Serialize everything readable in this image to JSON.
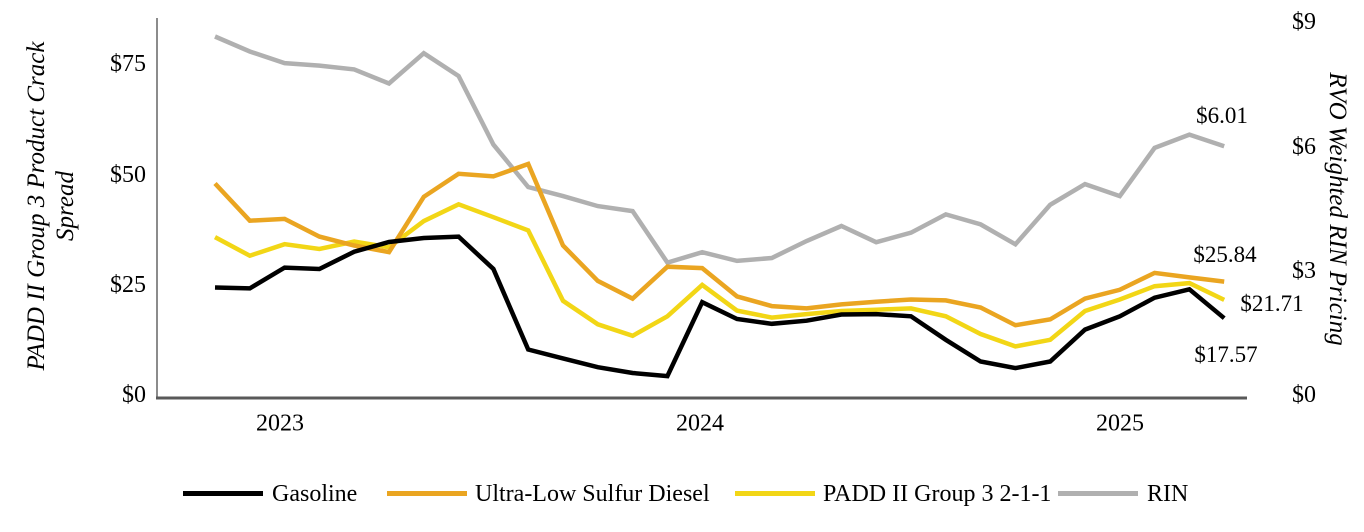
{
  "axes": {
    "left": {
      "title_lines": [
        "PADD II Group 3 Product Crack",
        "Spread"
      ],
      "ticks": [
        {
          "label": "$75",
          "value": 75
        },
        {
          "label": "$50",
          "value": 50
        },
        {
          "label": "$25",
          "value": 25
        },
        {
          "label": "$0",
          "value": 0
        }
      ]
    },
    "right": {
      "title": "RVO Weighted RIN Pricing",
      "ticks": [
        {
          "label": "$9",
          "value": 9
        },
        {
          "label": "$6",
          "value": 6
        },
        {
          "label": "$3",
          "value": 3
        },
        {
          "label": "$0",
          "value": 0
        }
      ]
    },
    "x": {
      "ticks": [
        {
          "label": "2023",
          "month_index": 2
        },
        {
          "label": "2024",
          "month_index": 14
        },
        {
          "label": "2025",
          "month_index": 26
        }
      ]
    }
  },
  "legend": [
    {
      "label": "Gasoline",
      "color": "#000000"
    },
    {
      "label": "Ultra-Low Sulfur Diesel",
      "color": "#EAA521"
    },
    {
      "label": "PADD II Group 3 2-1-1",
      "color": "#F2D616"
    },
    {
      "label": "RIN",
      "color": "#B0B0B0"
    }
  ],
  "chart_data": {
    "type": "line",
    "x": [
      "Nov-22",
      "Dec-22",
      "Jan-23",
      "Feb-23",
      "Mar-23",
      "Apr-23",
      "May-23",
      "Jun-23",
      "Jul-23",
      "Aug-23",
      "Sep-23",
      "Oct-23",
      "Nov-23",
      "Dec-23",
      "Jan-24",
      "Feb-24",
      "Mar-24",
      "Apr-24",
      "May-24",
      "Jun-24",
      "Jul-24",
      "Aug-24",
      "Sep-24",
      "Oct-24",
      "Nov-24",
      "Dec-24",
      "Jan-25",
      "Feb-25",
      "Mar-25",
      "Apr-25"
    ],
    "left_axis": {
      "label": "PADD II Group 3 Product Crack Spread",
      "range": [
        0,
        85
      ],
      "tick_values": [
        0,
        25,
        50,
        75
      ]
    },
    "right_axis": {
      "label": "RVO Weighted RIN Pricing",
      "range": [
        0,
        9.05
      ],
      "tick_values": [
        0,
        3,
        6,
        9
      ]
    },
    "grid": false,
    "legend_position": "bottom",
    "series": [
      {
        "name": "Gasoline",
        "axis": "left",
        "color": "#000000",
        "end_label": "$17.57",
        "values": [
          24.5,
          24.3,
          29.0,
          28.7,
          32.6,
          34.8,
          35.7,
          36.0,
          28.7,
          10.5,
          8.5,
          6.5,
          5.2,
          4.5,
          21.2,
          17.4,
          16.3,
          17.0,
          18.4,
          18.5,
          18.0,
          12.7,
          7.8,
          6.3,
          7.8,
          15.0,
          18.0,
          22.2,
          24.1,
          17.57
        ]
      },
      {
        "name": "Ultra-Low Sulfur Diesel",
        "axis": "left",
        "color": "#EAA521",
        "end_label": "$25.84",
        "values": [
          48.0,
          39.6,
          40.0,
          36.0,
          34.0,
          32.5,
          45.0,
          50.2,
          49.6,
          52.4,
          34.0,
          26.0,
          22.0,
          29.2,
          28.9,
          22.5,
          20.3,
          19.8,
          20.7,
          21.3,
          21.8,
          21.6,
          20.0,
          16.0,
          17.3,
          22.0,
          24.0,
          27.8,
          26.8,
          25.84
        ]
      },
      {
        "name": "PADD II Group 3 2-1-1",
        "axis": "left",
        "color": "#F2D616",
        "end_label": "$21.71",
        "values": [
          35.9,
          31.7,
          34.3,
          33.2,
          34.9,
          33.6,
          39.5,
          43.3,
          40.4,
          37.4,
          21.5,
          16.2,
          13.6,
          18.0,
          25.1,
          19.3,
          17.7,
          18.5,
          19.2,
          19.5,
          19.8,
          18.0,
          14.0,
          11.2,
          12.7,
          19.2,
          21.8,
          24.8,
          25.5,
          21.71
        ]
      },
      {
        "name": "RIN",
        "axis": "right",
        "color": "#B0B0B0",
        "end_label": "$6.01",
        "values": [
          8.65,
          8.29,
          8.01,
          7.95,
          7.86,
          7.52,
          8.25,
          7.7,
          6.05,
          5.03,
          4.81,
          4.57,
          4.45,
          3.21,
          3.46,
          3.25,
          3.32,
          3.73,
          4.09,
          3.7,
          3.93,
          4.37,
          4.13,
          3.65,
          4.6,
          5.1,
          4.81,
          5.97,
          6.29,
          6.01
        ]
      }
    ]
  }
}
